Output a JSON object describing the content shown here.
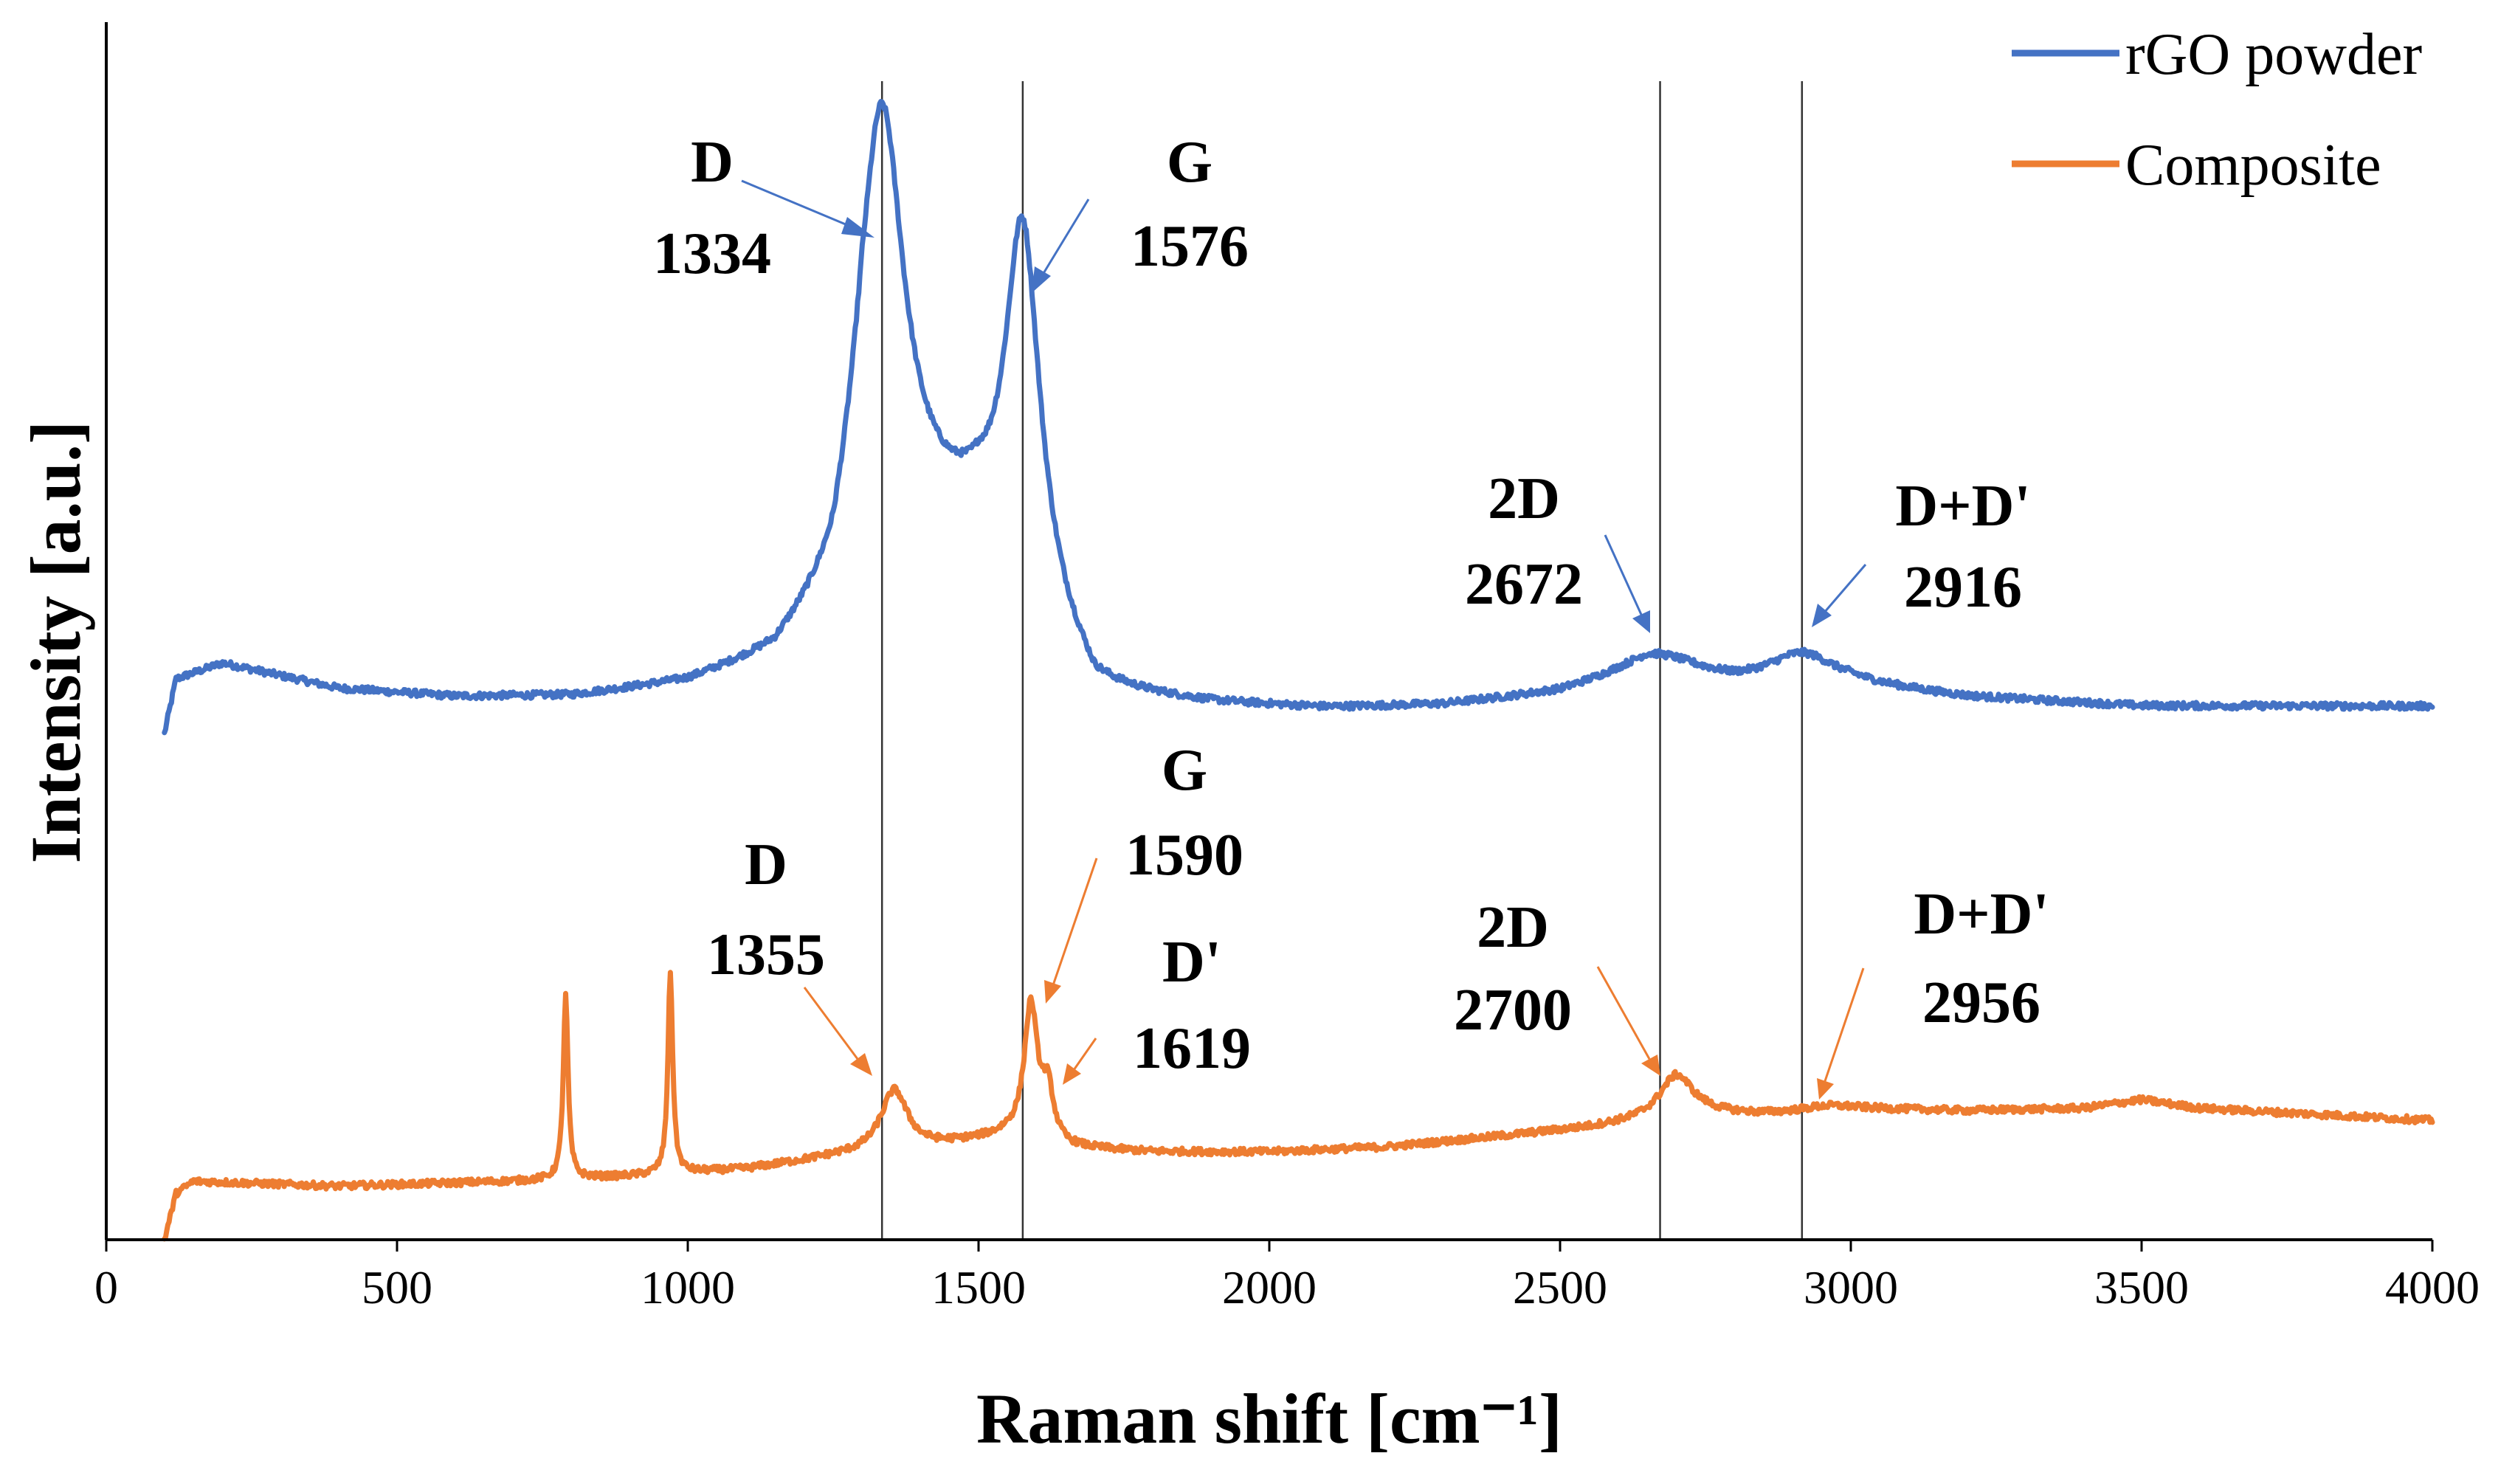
{
  "chart_data": {
    "type": "line",
    "title": "",
    "xlabel": "Raman shift [cm⁻¹]",
    "ylabel": "Intensity [a.u.]",
    "xlim": [
      0,
      4000
    ],
    "ylim": [
      0,
      100
    ],
    "x_ticks": [
      "0",
      "500",
      "1000",
      "1500",
      "2000",
      "2500",
      "3000",
      "3500",
      "4000"
    ],
    "y_ticks_shown": false,
    "grid": false,
    "legend_position": "top-right",
    "reference_lines_x": [
      1334,
      1576,
      2672,
      2916
    ],
    "colors": {
      "rgo": "#4472C4",
      "composite": "#ED7D31",
      "axis": "#000000",
      "refline": "#333333"
    },
    "series": [
      {
        "name": "rGO powder",
        "color": "#4472C4",
        "baseline": [
          [
            100,
            41.5
          ],
          [
            120,
            46
          ],
          [
            200,
            47.3
          ],
          [
            400,
            45.2
          ],
          [
            600,
            44.5
          ],
          [
            800,
            44.5
          ],
          [
            1000,
            45.5
          ],
          [
            1150,
            47.5
          ],
          [
            1250,
            52
          ],
          [
            1300,
            60
          ],
          [
            1500,
            58
          ],
          [
            1700,
            44.5
          ],
          [
            1900,
            43.8
          ],
          [
            2100,
            43.5
          ],
          [
            2300,
            43.8
          ],
          [
            2500,
            44.8
          ],
          [
            2650,
            46.5
          ],
          [
            2800,
            45.5
          ],
          [
            3000,
            45.5
          ],
          [
            3200,
            44.5
          ],
          [
            3500,
            43.8
          ],
          [
            4000,
            43.8
          ]
        ],
        "peaks": [
          {
            "label": "D",
            "x": 1334,
            "height": 33,
            "width": 45
          },
          {
            "label": "G",
            "x": 1576,
            "height": 30,
            "width": 36
          },
          {
            "label": "2D",
            "x": 2672,
            "height": 1.5,
            "width": 90
          },
          {
            "label": "D+D'",
            "x": 2916,
            "height": 2.5,
            "width": 70
          }
        ],
        "x_points": [
          100,
          150,
          200,
          400,
          600,
          800,
          1000,
          1200,
          1250,
          1300,
          1334,
          1380,
          1450,
          1500,
          1550,
          1576,
          1620,
          1700,
          1900,
          2100,
          2300,
          2500,
          2600,
          2672,
          2800,
          2916,
          3000,
          3200,
          3500,
          4000
        ],
        "y_points": [
          41.5,
          46.5,
          47.3,
          45.2,
          44.5,
          44.5,
          45.5,
          48.5,
          52.5,
          67.5,
          92.5,
          72.5,
          54.5,
          58,
          77,
          88,
          69,
          45,
          43.8,
          43.5,
          43.8,
          44.8,
          45.8,
          47.2,
          46.5,
          47.5,
          46,
          44.6,
          43.8,
          43.8
        ]
      },
      {
        "name": "Composite",
        "color": "#ED7D31",
        "baseline": [
          [
            100,
            0
          ],
          [
            120,
            3.8
          ],
          [
            150,
            4.8
          ],
          [
            400,
            4.4
          ],
          [
            700,
            4.8
          ],
          [
            900,
            5.2
          ],
          [
            1100,
            5.8
          ],
          [
            1250,
            6.8
          ],
          [
            1400,
            7.5
          ],
          [
            1550,
            8.5
          ],
          [
            1650,
            7.5
          ],
          [
            1800,
            7.2
          ],
          [
            2000,
            7.2
          ],
          [
            2200,
            7.6
          ],
          [
            2400,
            8.5
          ],
          [
            2550,
            9.2
          ],
          [
            2650,
            9.8
          ],
          [
            2750,
            10.3
          ],
          [
            2850,
            10.3
          ],
          [
            3000,
            10.8
          ],
          [
            3200,
            10.6
          ],
          [
            3400,
            10.8
          ],
          [
            3500,
            11.5
          ],
          [
            3600,
            10.8
          ],
          [
            4000,
            9.8
          ]
        ],
        "peaks": [
          {
            "label": "",
            "x": 790,
            "height": 15,
            "width": 5
          },
          {
            "label": "",
            "x": 970,
            "height": 16.5,
            "width": 5
          },
          {
            "label": "D",
            "x": 1355,
            "height": 5,
            "width": 28
          },
          {
            "label": "G",
            "x": 1590,
            "height": 11,
            "width": 14
          },
          {
            "label": "D'",
            "x": 1619,
            "height": 4,
            "width": 12
          },
          {
            "label": "2D",
            "x": 2700,
            "height": 3.5,
            "width": 35
          },
          {
            "label": "D+D'",
            "x": 2956,
            "height": 0.3,
            "width": 40
          }
        ],
        "x_points": [
          100,
          150,
          400,
          700,
          790,
          850,
          970,
          1100,
          1300,
          1355,
          1450,
          1550,
          1590,
          1619,
          1700,
          2000,
          2400,
          2600,
          2700,
          2800,
          2956,
          3200,
          3500,
          4000
        ],
        "y_points": [
          0,
          4.8,
          4.4,
          4.8,
          20,
          5,
          21.5,
          5.8,
          8,
          12,
          7.6,
          9,
          19.5,
          12,
          7.4,
          7.2,
          8.5,
          9.6,
          14,
          10.3,
          11,
          10.6,
          11.5,
          9.8
        ]
      }
    ],
    "annotations": [
      {
        "series": "rGO powder",
        "name": "D",
        "value": "1334"
      },
      {
        "series": "rGO powder",
        "name": "G",
        "value": "1576"
      },
      {
        "series": "rGO powder",
        "name": "2D",
        "value": "2672"
      },
      {
        "series": "rGO powder",
        "name": "D+D'",
        "value": "2916"
      },
      {
        "series": "Composite",
        "name": "D",
        "value": "1355"
      },
      {
        "series": "Composite",
        "name": "G",
        "value": "1590"
      },
      {
        "series": "Composite",
        "name": "D'",
        "value": "1619"
      },
      {
        "series": "Composite",
        "name": "2D",
        "value": "2700"
      },
      {
        "series": "Composite",
        "name": "D+D'",
        "value": "2956"
      }
    ]
  }
}
